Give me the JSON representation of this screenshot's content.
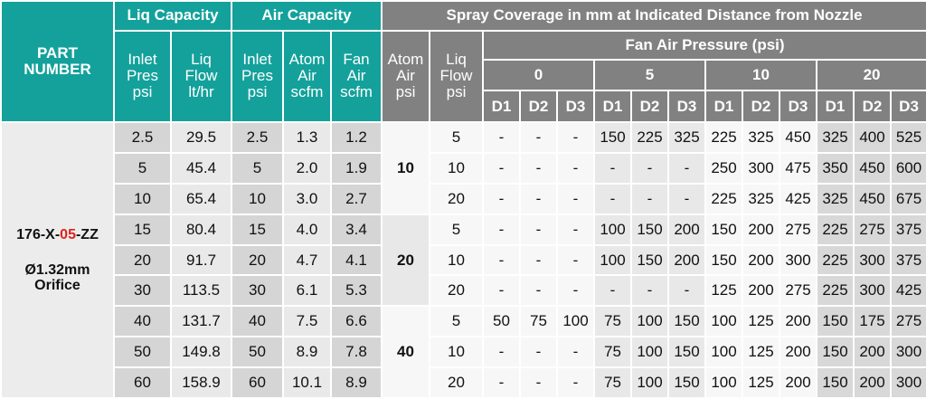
{
  "header": {
    "part_number": "PART NUMBER",
    "liq_capacity": "Liq Capacity",
    "air_capacity": "Air Capacity",
    "spray_coverage": "Spray Coverage in mm at Indicated Distance from Nozzle",
    "fan_air_pressure": "Fan Air Pressure (psi)",
    "capacity_columns": [
      "Inlet Pres psi",
      "Liq Flow lt/hr",
      "Inlet Pres psi",
      "Atom Air scfm",
      "Fan Air scfm"
    ],
    "spray_columns": [
      "Atom Air psi",
      "Liq Flow psi"
    ],
    "fan_pressures": [
      "0",
      "5",
      "10",
      "20"
    ],
    "distances": [
      "D1",
      "D2",
      "D3"
    ]
  },
  "part": {
    "prefix": "176-X-",
    "code": "05",
    "suffix": "-ZZ",
    "orifice": "Ø1.32mm Orifice"
  },
  "capacity_rows": [
    [
      "2.5",
      "29.5",
      "2.5",
      "1.3",
      "1.2"
    ],
    [
      "5",
      "45.4",
      "5",
      "2.0",
      "1.9"
    ],
    [
      "10",
      "65.4",
      "10",
      "3.0",
      "2.7"
    ],
    [
      "15",
      "80.4",
      "15",
      "4.0",
      "3.4"
    ],
    [
      "20",
      "91.7",
      "20",
      "4.7",
      "4.1"
    ],
    [
      "30",
      "113.5",
      "30",
      "6.1",
      "5.3"
    ],
    [
      "40",
      "131.7",
      "40",
      "7.5",
      "6.6"
    ],
    [
      "50",
      "149.8",
      "50",
      "8.9",
      "7.8"
    ],
    [
      "60",
      "158.9",
      "60",
      "10.1",
      "8.9"
    ]
  ],
  "spray_groups": [
    {
      "atom_air": "10",
      "rows": [
        {
          "liq_flow": "5",
          "coverage": [
            "-",
            "-",
            "-",
            "150",
            "225",
            "325",
            "225",
            "325",
            "450",
            "325",
            "400",
            "525"
          ]
        },
        {
          "liq_flow": "10",
          "coverage": [
            "-",
            "-",
            "-",
            "-",
            "-",
            "-",
            "250",
            "300",
            "475",
            "350",
            "450",
            "600"
          ]
        },
        {
          "liq_flow": "20",
          "coverage": [
            "-",
            "-",
            "-",
            "-",
            "-",
            "-",
            "225",
            "325",
            "425",
            "325",
            "450",
            "675"
          ]
        }
      ]
    },
    {
      "atom_air": "20",
      "rows": [
        {
          "liq_flow": "5",
          "coverage": [
            "-",
            "-",
            "-",
            "100",
            "150",
            "200",
            "150",
            "200",
            "275",
            "225",
            "275",
            "375"
          ]
        },
        {
          "liq_flow": "10",
          "coverage": [
            "-",
            "-",
            "-",
            "100",
            "150",
            "200",
            "150",
            "200",
            "300",
            "225",
            "300",
            "375"
          ]
        },
        {
          "liq_flow": "20",
          "coverage": [
            "-",
            "-",
            "-",
            "-",
            "-",
            "-",
            "125",
            "200",
            "275",
            "225",
            "300",
            "425"
          ]
        }
      ]
    },
    {
      "atom_air": "40",
      "rows": [
        {
          "liq_flow": "5",
          "coverage": [
            "50",
            "75",
            "100",
            "75",
            "100",
            "150",
            "100",
            "125",
            "200",
            "150",
            "175",
            "275"
          ]
        },
        {
          "liq_flow": "10",
          "coverage": [
            "-",
            "-",
            "-",
            "75",
            "100",
            "150",
            "100",
            "125",
            "200",
            "150",
            "200",
            "300"
          ]
        },
        {
          "liq_flow": "20",
          "coverage": [
            "-",
            "-",
            "-",
            "75",
            "100",
            "150",
            "100",
            "125",
            "200",
            "150",
            "200",
            "300"
          ]
        }
      ]
    }
  ]
}
